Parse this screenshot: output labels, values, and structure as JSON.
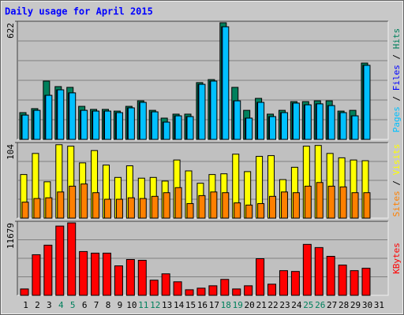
{
  "title": "Daily usage for April 2015",
  "chart_data": [
    {
      "type": "bar",
      "ylim": [
        0,
        622
      ],
      "yticks": [
        622
      ],
      "legend_separator": " / ",
      "series": [
        {
          "name": "Hits",
          "color": "#00805c",
          "values": [
            141,
            162,
            307,
            278,
            274,
            174,
            158,
            158,
            149,
            174,
            203,
            153,
            112,
            133,
            133,
            299,
            315,
            614,
            274,
            153,
            216,
            133,
            153,
            199,
            199,
            203,
            203,
            149,
            153,
            402,
            0
          ]
        },
        {
          "name": "Files",
          "color": "#0000ff",
          "values": [
            128,
            153,
            232,
            261,
            245,
            153,
            149,
            149,
            141,
            166,
            195,
            145,
            91,
            124,
            120,
            290,
            307,
            593,
            203,
            112,
            195,
            120,
            141,
            191,
            182,
            187,
            178,
            141,
            124,
            390,
            0
          ]
        },
        {
          "name": "Pages",
          "color": "#00c0ff",
          "values": [
            128,
            153,
            232,
            261,
            245,
            153,
            149,
            149,
            141,
            166,
            195,
            145,
            91,
            124,
            120,
            290,
            307,
            593,
            203,
            112,
            195,
            120,
            141,
            191,
            182,
            187,
            178,
            141,
            124,
            390,
            0
          ]
        }
      ]
    },
    {
      "type": "bar",
      "ylim": [
        0,
        104
      ],
      "yticks": [
        104
      ],
      "legend_separator": " / ",
      "series": [
        {
          "name": "Visits",
          "color": "#ffff00",
          "values": [
            60,
            89,
            50,
            101,
            99,
            76,
            93,
            73,
            56,
            72,
            55,
            56,
            51,
            80,
            65,
            48,
            60,
            61,
            88,
            64,
            85,
            86,
            53,
            70,
            99,
            100,
            89,
            83,
            80,
            79,
            0
          ]
        },
        {
          "name": "Sites",
          "color": "#ff8000",
          "values": [
            22,
            27,
            28,
            36,
            44,
            47,
            35,
            26,
            26,
            28,
            27,
            30,
            35,
            42,
            20,
            31,
            36,
            35,
            21,
            18,
            20,
            30,
            36,
            35,
            44,
            49,
            44,
            43,
            35,
            35,
            0
          ]
        }
      ]
    },
    {
      "type": "bar",
      "ylim": [
        0,
        11679
      ],
      "yticks": [
        11679
      ],
      "legend_separator": " / ",
      "categories": [
        "1",
        "2",
        "3",
        "4",
        "5",
        "6",
        "7",
        "8",
        "9",
        "10",
        "11",
        "12",
        "13",
        "14",
        "15",
        "16",
        "17",
        "18",
        "19",
        "20",
        "21",
        "22",
        "23",
        "24",
        "25",
        "26",
        "27",
        "28",
        "29",
        "30",
        "31"
      ],
      "category_colors": [
        "#000000",
        "#000000",
        "#000000",
        "#00805c",
        "#00805c",
        "#000000",
        "#000000",
        "#000000",
        "#000000",
        "#000000",
        "#00805c",
        "#00805c",
        "#000000",
        "#000000",
        "#000000",
        "#000000",
        "#000000",
        "#00805c",
        "#00805c",
        "#000000",
        "#000000",
        "#000000",
        "#000000",
        "#000000",
        "#00805c",
        "#00805c",
        "#000000",
        "#000000",
        "#000000",
        "#000000",
        "#000000"
      ],
      "series": [
        {
          "name": "KBytes",
          "color": "#ff0000",
          "values": [
            1005,
            6405,
            7912,
            10925,
            11428,
            6907,
            6656,
            6656,
            4647,
            5651,
            5526,
            2386,
            3391,
            2135,
            879,
            1130,
            1507,
            2512,
            1005,
            1507,
            5777,
            1758,
            3893,
            3767,
            8037,
            7535,
            6153,
            4772,
            3893,
            4270,
            0
          ]
        }
      ]
    }
  ]
}
